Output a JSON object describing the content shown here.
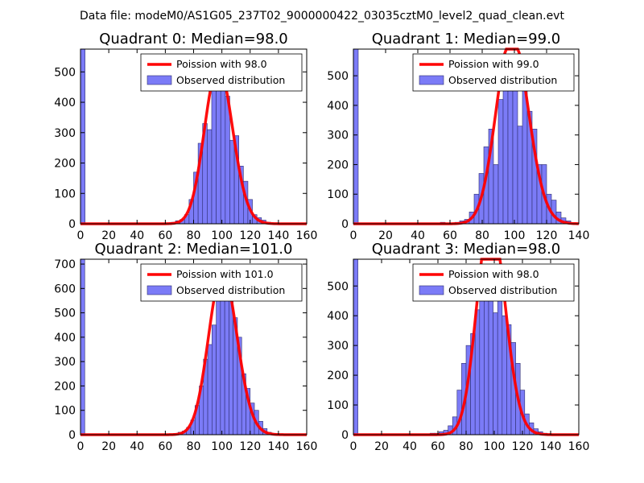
{
  "figure": {
    "title": "Data file: modeM0/AS1G05_237T02_9000000422_03035cztM0_level2_quad_clean.evt"
  },
  "chart_data": [
    {
      "type": "bar",
      "title": "Quadrant 0: Median=98.0",
      "median": 98.0,
      "bin_width": 3.2,
      "xlim": [
        0,
        160
      ],
      "ylim": [
        0,
        575
      ],
      "xticks": [
        0,
        20,
        40,
        60,
        80,
        100,
        120,
        140,
        160
      ],
      "yticks": [
        0,
        100,
        200,
        300,
        400,
        500
      ],
      "bins": [
        {
          "x": 0,
          "y": 575
        },
        {
          "x": 64,
          "y": 5
        },
        {
          "x": 67.2,
          "y": 10
        },
        {
          "x": 70.4,
          "y": 14
        },
        {
          "x": 73.6,
          "y": 30
        },
        {
          "x": 76.8,
          "y": 80
        },
        {
          "x": 80,
          "y": 170
        },
        {
          "x": 83.2,
          "y": 265
        },
        {
          "x": 86.4,
          "y": 330
        },
        {
          "x": 89.6,
          "y": 310
        },
        {
          "x": 92.8,
          "y": 440
        },
        {
          "x": 96,
          "y": 445
        },
        {
          "x": 99.2,
          "y": 460
        },
        {
          "x": 102.4,
          "y": 420
        },
        {
          "x": 105.6,
          "y": 275
        },
        {
          "x": 108.8,
          "y": 290
        },
        {
          "x": 112,
          "y": 190
        },
        {
          "x": 115.2,
          "y": 140
        },
        {
          "x": 118.4,
          "y": 80
        },
        {
          "x": 121.6,
          "y": 30
        },
        {
          "x": 124.8,
          "y": 20
        },
        {
          "x": 128,
          "y": 12
        },
        {
          "x": 131.2,
          "y": 5
        }
      ],
      "legend": [
        "Poission with 98.0",
        "Observed distribution"
      ]
    },
    {
      "type": "bar",
      "title": "Quadrant 1: Median=99.0",
      "median": 99.0,
      "bin_width": 3.0,
      "xlim": [
        0,
        140
      ],
      "ylim": [
        0,
        590
      ],
      "xticks": [
        0,
        20,
        40,
        60,
        80,
        100,
        120,
        140
      ],
      "yticks": [
        0,
        100,
        200,
        300,
        400,
        500
      ],
      "bins": [
        {
          "x": 0,
          "y": 590
        },
        {
          "x": 54,
          "y": 5
        },
        {
          "x": 63,
          "y": 5
        },
        {
          "x": 66,
          "y": 10
        },
        {
          "x": 69,
          "y": 15
        },
        {
          "x": 72,
          "y": 40
        },
        {
          "x": 75,
          "y": 100
        },
        {
          "x": 78,
          "y": 170
        },
        {
          "x": 81,
          "y": 260
        },
        {
          "x": 84,
          "y": 320
        },
        {
          "x": 87,
          "y": 200
        },
        {
          "x": 90,
          "y": 420
        },
        {
          "x": 93,
          "y": 530
        },
        {
          "x": 96,
          "y": 510
        },
        {
          "x": 99,
          "y": 560
        },
        {
          "x": 102,
          "y": 330
        },
        {
          "x": 105,
          "y": 480
        },
        {
          "x": 108,
          "y": 380
        },
        {
          "x": 111,
          "y": 320
        },
        {
          "x": 114,
          "y": 200
        },
        {
          "x": 117,
          "y": 200
        },
        {
          "x": 120,
          "y": 100
        },
        {
          "x": 123,
          "y": 80
        },
        {
          "x": 126,
          "y": 40
        },
        {
          "x": 129,
          "y": 20
        },
        {
          "x": 132,
          "y": 10
        }
      ],
      "legend": [
        "Poission with 99.0",
        "Observed distribution"
      ]
    },
    {
      "type": "bar",
      "title": "Quadrant 2: Median=101.0",
      "median": 101.0,
      "bin_width": 3.0,
      "xlim": [
        0,
        160
      ],
      "ylim": [
        0,
        720
      ],
      "xticks": [
        0,
        20,
        40,
        60,
        80,
        100,
        120,
        140,
        160
      ],
      "yticks": [
        0,
        100,
        200,
        300,
        400,
        500,
        600,
        700
      ],
      "bins": [
        {
          "x": 0,
          "y": 720
        },
        {
          "x": 66,
          "y": 5
        },
        {
          "x": 69,
          "y": 10
        },
        {
          "x": 72,
          "y": 15
        },
        {
          "x": 75,
          "y": 30
        },
        {
          "x": 78,
          "y": 60
        },
        {
          "x": 81,
          "y": 120
        },
        {
          "x": 84,
          "y": 200
        },
        {
          "x": 87,
          "y": 310
        },
        {
          "x": 90,
          "y": 370
        },
        {
          "x": 93,
          "y": 450
        },
        {
          "x": 96,
          "y": 560
        },
        {
          "x": 99,
          "y": 620
        },
        {
          "x": 102,
          "y": 670
        },
        {
          "x": 105,
          "y": 550
        },
        {
          "x": 108,
          "y": 480
        },
        {
          "x": 111,
          "y": 400
        },
        {
          "x": 114,
          "y": 250
        },
        {
          "x": 117,
          "y": 190
        },
        {
          "x": 120,
          "y": 130
        },
        {
          "x": 123,
          "y": 100
        },
        {
          "x": 126,
          "y": 55
        },
        {
          "x": 129,
          "y": 25
        },
        {
          "x": 132,
          "y": 10
        },
        {
          "x": 135,
          "y": 5
        }
      ],
      "legend": [
        "Poission with 101.0",
        "Observed distribution"
      ]
    },
    {
      "type": "bar",
      "title": "Quadrant 3: Median=98.0",
      "median": 98.0,
      "bin_width": 3.2,
      "xlim": [
        0,
        160
      ],
      "ylim": [
        0,
        590
      ],
      "xticks": [
        0,
        20,
        40,
        60,
        80,
        100,
        120,
        140,
        160
      ],
      "yticks": [
        0,
        100,
        200,
        300,
        400,
        500
      ],
      "bins": [
        {
          "x": 0,
          "y": 590
        },
        {
          "x": 54.4,
          "y": 5
        },
        {
          "x": 57.6,
          "y": 5
        },
        {
          "x": 60.8,
          "y": 10
        },
        {
          "x": 64,
          "y": 15
        },
        {
          "x": 67.2,
          "y": 30
        },
        {
          "x": 70.4,
          "y": 60
        },
        {
          "x": 73.6,
          "y": 150
        },
        {
          "x": 76.8,
          "y": 240
        },
        {
          "x": 80,
          "y": 300
        },
        {
          "x": 83.2,
          "y": 340
        },
        {
          "x": 86.4,
          "y": 420
        },
        {
          "x": 89.6,
          "y": 470
        },
        {
          "x": 92.8,
          "y": 550
        },
        {
          "x": 96,
          "y": 510
        },
        {
          "x": 99.2,
          "y": 410
        },
        {
          "x": 102.4,
          "y": 570
        },
        {
          "x": 105.6,
          "y": 400
        },
        {
          "x": 108.8,
          "y": 370
        },
        {
          "x": 112,
          "y": 310
        },
        {
          "x": 115.2,
          "y": 240
        },
        {
          "x": 118.4,
          "y": 150
        },
        {
          "x": 121.6,
          "y": 70
        },
        {
          "x": 124.8,
          "y": 40
        },
        {
          "x": 128,
          "y": 20
        },
        {
          "x": 131.2,
          "y": 10
        },
        {
          "x": 134.4,
          "y": 5
        }
      ],
      "legend": [
        "Poission with 98.0",
        "Observed distribution"
      ]
    }
  ]
}
